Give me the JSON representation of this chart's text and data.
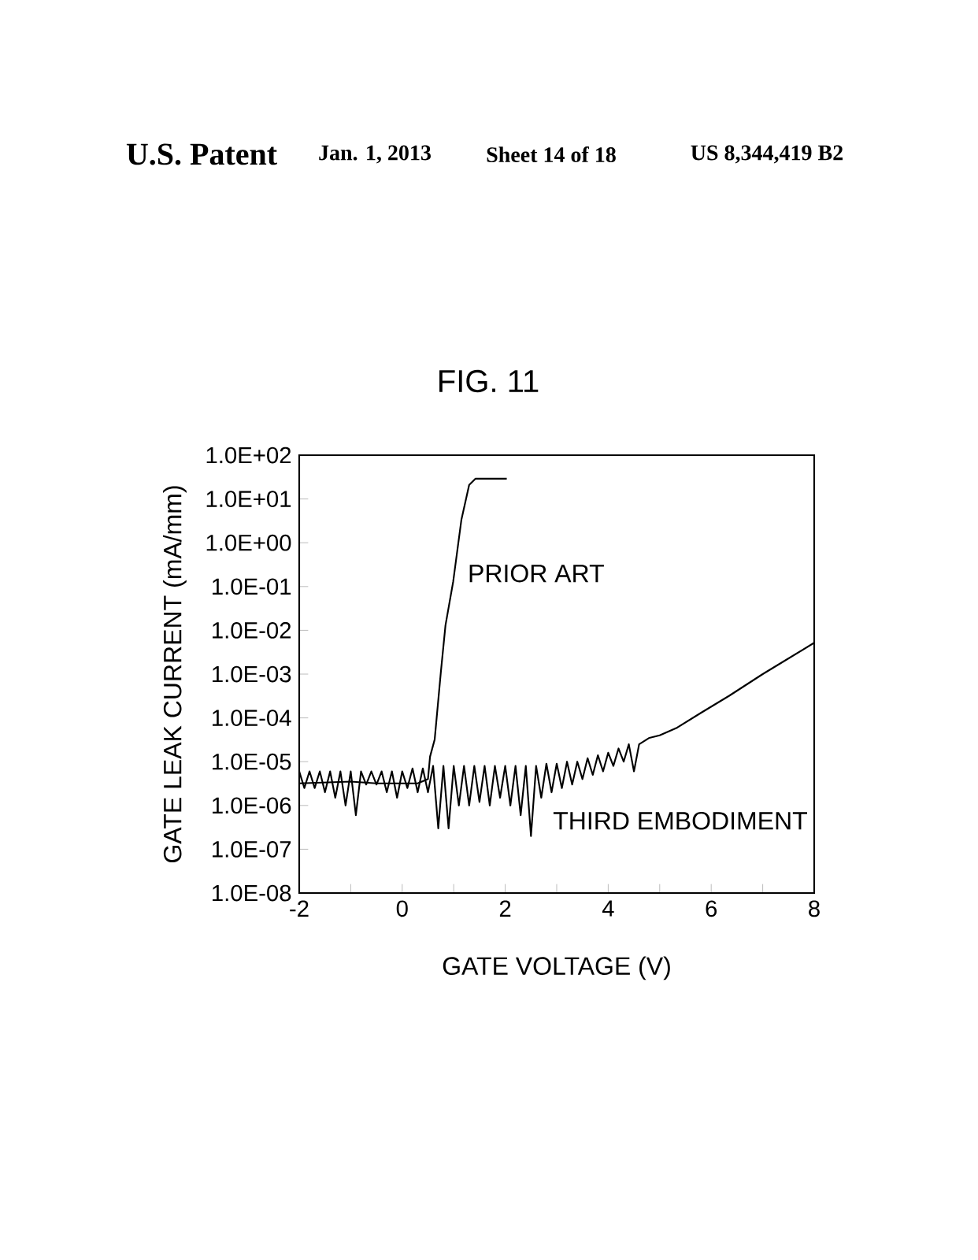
{
  "chart_data": {
    "type": "line",
    "title": "FIG. 11",
    "xlabel": "GATE VOLTAGE (V)",
    "ylabel": "GATE LEAK CURRENT (mA/mm)",
    "annotations": [
      "U.S. Patent",
      "Jan. 1, 2013",
      "Sheet 14 of 18",
      "US 8,344,419 B2"
    ],
    "log": "y",
    "grid": false,
    "marker": "none",
    "line_style": "solid",
    "xlim": [
      -2,
      8
    ],
    "xticks": [
      -2,
      {
        "value": -1,
        "label": null
      },
      0,
      {
        "value": 1,
        "label": null
      },
      2,
      {
        "value": 3,
        "label": null
      },
      4,
      {
        "value": 5,
        "label": null
      },
      6,
      {
        "value": 7,
        "label": null
      },
      8
    ],
    "ylim": [
      1e-08,
      100
    ],
    "yticks": [
      {
        "value": 1e-08,
        "label": "1.0E-08"
      },
      {
        "value": 1e-07,
        "label": "1.0E-07"
      },
      {
        "value": 1e-06,
        "label": "1.0E-06"
      },
      {
        "value": 1e-05,
        "label": "1.0E-05"
      },
      {
        "value": 0.0001,
        "label": "1.0E-04"
      },
      {
        "value": 0.001,
        "label": "1.0E-03"
      },
      {
        "value": 0.01,
        "label": "1.0E-02"
      },
      {
        "value": 0.1,
        "label": "1.0E-01"
      },
      {
        "value": 1,
        "label": "1.0E+00"
      },
      {
        "value": 10,
        "label": "1.0E+01"
      },
      {
        "value": 100,
        "label": "1.0E+02"
      }
    ],
    "series": [
      {
        "name": "PRIOR ART",
        "color": "#000000",
        "x": [
          -2,
          -1,
          -0.5,
          0,
          0.3,
          0.5,
          0.54,
          0.63,
          0.75,
          0.84,
          0.99,
          1.15,
          1.3,
          1.42,
          2.03
        ],
        "values": [
          3.2e-06,
          3.5e-06,
          3.2e-06,
          3.2e-06,
          3.2e-06,
          4e-06,
          1.3e-05,
          3.2e-05,
          0.0011,
          0.013,
          0.13,
          3.4,
          21,
          29,
          29
        ]
      },
      {
        "name": "THIRD EMBODIMENT",
        "color": "#000000",
        "x": [
          -2.0,
          -1.9,
          -1.8,
          -1.7,
          -1.6,
          -1.5,
          -1.4,
          -1.3,
          -1.2,
          -1.1,
          -1.0,
          -0.9,
          -0.8,
          -0.7,
          -0.6,
          -0.5,
          -0.4,
          -0.3,
          -0.2,
          -0.1,
          0.0,
          0.1,
          0.2,
          0.3,
          0.4,
          0.5,
          0.6,
          0.7,
          0.8,
          0.9,
          1.0,
          1.1,
          1.2,
          1.3,
          1.4,
          1.5,
          1.6,
          1.7,
          1.8,
          1.9,
          2.0,
          2.1,
          2.2,
          2.3,
          2.4,
          2.5,
          2.6,
          2.7,
          2.8,
          2.9,
          3.0,
          3.1,
          3.2,
          3.3,
          3.4,
          3.5,
          3.6,
          3.7,
          3.8,
          3.9,
          4.0,
          4.1,
          4.2,
          4.3,
          4.4,
          4.5,
          4.6,
          4.8,
          5.0,
          5.34,
          5.8,
          6.35,
          7.0,
          7.39,
          8.0
        ],
        "values": [
          6e-06,
          2.5e-06,
          6e-06,
          2.5e-06,
          6e-06,
          2e-06,
          6e-06,
          1.5e-06,
          6e-06,
          1e-06,
          6e-06,
          6e-07,
          6e-06,
          3e-06,
          6e-06,
          3e-06,
          6e-06,
          2e-06,
          6e-06,
          1.5e-06,
          6e-06,
          2.5e-06,
          7e-06,
          2e-06,
          7e-06,
          2e-06,
          8e-06,
          3e-07,
          8e-06,
          3e-07,
          8e-06,
          1e-06,
          8e-06,
          1e-06,
          8e-06,
          1.2e-06,
          8e-06,
          1e-06,
          8e-06,
          1.5e-06,
          8e-06,
          1e-06,
          8e-06,
          6e-07,
          8e-06,
          2e-07,
          8e-06,
          1.5e-06,
          9e-06,
          2e-06,
          9e-06,
          2.5e-06,
          1e-05,
          3e-06,
          1e-05,
          4e-06,
          1.2e-05,
          5e-06,
          1.4e-05,
          6e-06,
          1.6e-05,
          8e-06,
          2e-05,
          1e-05,
          2.5e-05,
          6e-06,
          2.5e-05,
          3.5e-05,
          4e-05,
          6e-05,
          0.00013,
          0.00032,
          0.001,
          0.0019,
          0.0052
        ]
      }
    ]
  }
}
